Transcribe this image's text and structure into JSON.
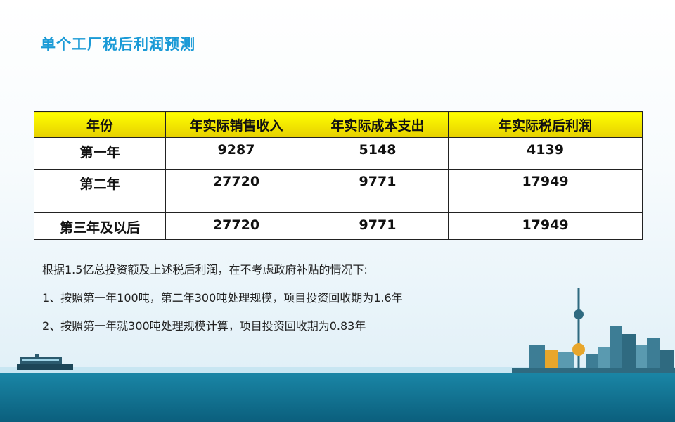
{
  "title": "单个工厂税后利润预测",
  "table": {
    "headers": [
      "年份",
      "年实际销售收入",
      "年实际成本支出",
      "年实际税后利润"
    ],
    "rows": [
      {
        "year": "第一年",
        "revenue": "9287",
        "cost": "5148",
        "profit": "4139"
      },
      {
        "year": "第二年",
        "revenue": "27720",
        "cost": "9771",
        "profit": "17949"
      },
      {
        "year": "第三年及以后",
        "revenue": "27720",
        "cost": "9771",
        "profit": "17949"
      }
    ]
  },
  "notes": [
    "根据1.5亿总投资额及上述税后利润，在不考虑政府补贴的情况下:",
    "1、按照第一年100吨，第二年300吨处理规模，项目投资回收期为1.6年",
    "2、按照第一年就300吨处理规模计算，项目投资回收期为0.83年"
  ],
  "colors": {
    "title": "#1a9ad6",
    "header": "#ffff00",
    "sea": "#0b5f7d"
  }
}
